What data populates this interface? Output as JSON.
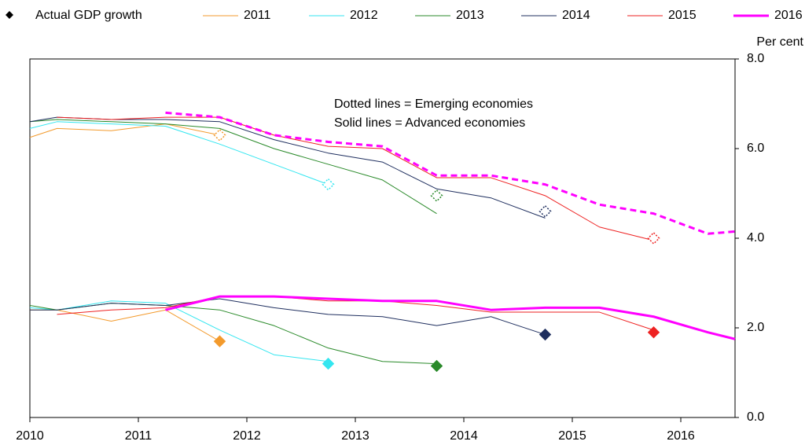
{
  "chart_data": {
    "type": "line",
    "actual_label": "Actual GDP growth",
    "y_label": "Per cent",
    "annotations": [
      "Dotted lines = Emerging economies",
      "Solid lines = Advanced economies"
    ],
    "xlim": [
      2010,
      2016.5
    ],
    "xticks": [
      2010,
      2011,
      2012,
      2013,
      2014,
      2015,
      2016
    ],
    "ylim": [
      0,
      8
    ],
    "yticks": [
      {
        "value": 0,
        "label": "0.0"
      },
      {
        "value": 2,
        "label": "2.0"
      },
      {
        "value": 4,
        "label": "4.0"
      },
      {
        "value": 6,
        "label": "6.0"
      },
      {
        "value": 8,
        "label": "8.0"
      }
    ],
    "series": [
      {
        "name": "2011",
        "color": "#f39a2c",
        "width": 1,
        "dashed_emerging": false,
        "emerging": {
          "x": [
            2010,
            2010.25,
            2010.75,
            2011.25,
            2011.75
          ],
          "values": [
            6.25,
            6.45,
            6.4,
            6.55,
            6.3
          ]
        },
        "advanced": {
          "x": [
            2010,
            2010.25,
            2010.75,
            2011.25,
            2011.75
          ],
          "values": [
            2.4,
            2.4,
            2.15,
            2.4,
            1.7
          ]
        },
        "actual": {
          "x": 2011.75,
          "emerging": 6.3,
          "advanced": 1.7
        }
      },
      {
        "name": "2012",
        "color": "#33e6f0",
        "width": 1,
        "dashed_emerging": false,
        "emerging": {
          "x": [
            2010,
            2010.25,
            2010.75,
            2011.25,
            2011.75,
            2012.25,
            2012.75
          ],
          "values": [
            6.45,
            6.6,
            6.55,
            6.5,
            6.1,
            5.65,
            5.2
          ]
        },
        "advanced": {
          "x": [
            2010,
            2010.25,
            2010.75,
            2011.25,
            2011.75,
            2012.25,
            2012.75
          ],
          "values": [
            2.45,
            2.4,
            2.6,
            2.55,
            1.95,
            1.4,
            1.25
          ]
        },
        "actual": {
          "x": 2012.75,
          "emerging": 5.2,
          "advanced": 1.2
        }
      },
      {
        "name": "2013",
        "color": "#2a8a2a",
        "width": 1,
        "dashed_emerging": false,
        "emerging": {
          "x": [
            2010,
            2010.25,
            2010.75,
            2011.25,
            2011.75,
            2012.25,
            2012.75,
            2013.25,
            2013.75
          ],
          "values": [
            6.6,
            6.65,
            6.6,
            6.55,
            6.45,
            6.0,
            5.65,
            5.3,
            4.55
          ]
        },
        "advanced": {
          "x": [
            2010,
            2010.25,
            2010.75,
            2011.25,
            2011.75,
            2012.25,
            2012.75,
            2013.25,
            2013.75
          ],
          "values": [
            2.5,
            2.4,
            2.55,
            2.5,
            2.4,
            2.05,
            1.55,
            1.25,
            1.2
          ]
        },
        "actual": {
          "x": 2013.75,
          "emerging": 4.95,
          "advanced": 1.15
        }
      },
      {
        "name": "2014",
        "color": "#1f2f5f",
        "width": 1,
        "dashed_emerging": false,
        "emerging": {
          "x": [
            2010,
            2010.25,
            2010.75,
            2011.25,
            2011.75,
            2012.25,
            2012.75,
            2013.25,
            2013.75,
            2014.25,
            2014.75
          ],
          "values": [
            6.6,
            6.7,
            6.65,
            6.65,
            6.6,
            6.2,
            5.9,
            5.7,
            5.1,
            4.9,
            4.45
          ]
        },
        "advanced": {
          "x": [
            2010,
            2010.25,
            2010.75,
            2011.25,
            2011.75,
            2012.25,
            2012.75,
            2013.25,
            2013.75,
            2014.25,
            2014.75
          ],
          "values": [
            2.4,
            2.4,
            2.55,
            2.5,
            2.65,
            2.45,
            2.3,
            2.25,
            2.05,
            2.25,
            1.85
          ]
        },
        "actual": {
          "x": 2014.75,
          "emerging": 4.6,
          "advanced": 1.85
        }
      },
      {
        "name": "2015",
        "color": "#ee2222",
        "width": 1,
        "dashed_emerging": false,
        "emerging": {
          "x": [
            2010.25,
            2010.75,
            2011.25,
            2011.75,
            2012.25,
            2012.75,
            2013.25,
            2013.75,
            2014.25,
            2014.75,
            2015.25,
            2015.75
          ],
          "values": [
            6.7,
            6.65,
            6.7,
            6.7,
            6.3,
            6.05,
            6.0,
            5.35,
            5.35,
            4.95,
            4.25,
            3.95
          ]
        },
        "advanced": {
          "x": [
            2010.25,
            2010.75,
            2011.25,
            2011.75,
            2012.25,
            2012.75,
            2013.25,
            2013.75,
            2014.25,
            2014.75,
            2015.25,
            2015.75
          ],
          "values": [
            2.3,
            2.4,
            2.45,
            2.7,
            2.7,
            2.6,
            2.6,
            2.5,
            2.35,
            2.35,
            2.35,
            1.95
          ]
        },
        "actual": {
          "x": 2015.75,
          "emerging": 4.0,
          "advanced": 1.9
        }
      },
      {
        "name": "2016",
        "color": "#ff00ff",
        "width": 3,
        "dashed_emerging": true,
        "emerging": {
          "x": [
            2011.25,
            2011.75,
            2012.25,
            2012.75,
            2013.25,
            2013.75,
            2014.25,
            2014.75,
            2015.25,
            2015.75,
            2016.25,
            2016.5
          ],
          "values": [
            6.8,
            6.7,
            6.3,
            6.15,
            6.05,
            5.4,
            5.4,
            5.2,
            4.75,
            4.55,
            4.1,
            4.15
          ]
        },
        "advanced": {
          "x": [
            2011.25,
            2011.75,
            2012.25,
            2012.75,
            2013.25,
            2013.75,
            2014.25,
            2014.75,
            2015.25,
            2015.75,
            2016.25,
            2016.5
          ],
          "values": [
            2.4,
            2.7,
            2.7,
            2.65,
            2.6,
            2.6,
            2.4,
            2.45,
            2.45,
            2.25,
            1.9,
            1.75
          ]
        }
      }
    ]
  }
}
